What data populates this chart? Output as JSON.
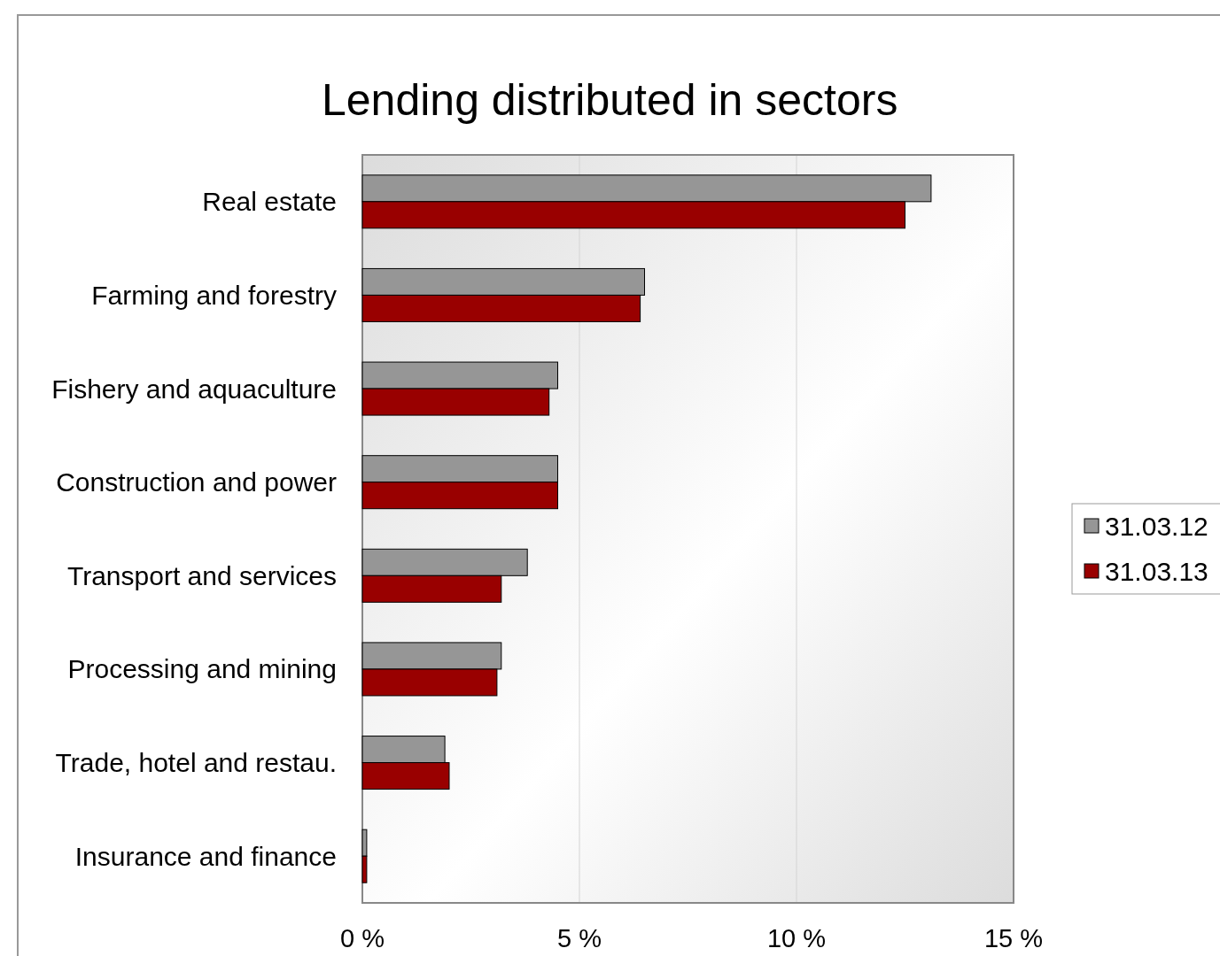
{
  "chart_data": {
    "type": "bar",
    "orientation": "horizontal",
    "title": "Lending distributed in sectors",
    "categories": [
      "Real estate",
      "Farming and forestry",
      "Fishery and aquaculture",
      "Construction and power",
      "Transport and services",
      "Processing and mining",
      "Trade, hotel and restau.",
      "Insurance and finance"
    ],
    "series": [
      {
        "name": "31.03.12",
        "color": "#969696",
        "values": [
          13.1,
          6.5,
          4.5,
          4.5,
          3.8,
          3.2,
          1.9,
          0.1
        ]
      },
      {
        "name": "31.03.13",
        "color": "#990000",
        "values": [
          12.5,
          6.4,
          4.3,
          4.5,
          3.2,
          3.1,
          2.0,
          0.1
        ]
      }
    ],
    "xlim": [
      0,
      15
    ],
    "xticks": [
      {
        "value": 0,
        "label": "0 %"
      },
      {
        "value": 5,
        "label": "5 %"
      },
      {
        "value": 10,
        "label": "10 %"
      },
      {
        "value": 15,
        "label": "15 %"
      }
    ],
    "grid": "x",
    "legend": "right"
  }
}
